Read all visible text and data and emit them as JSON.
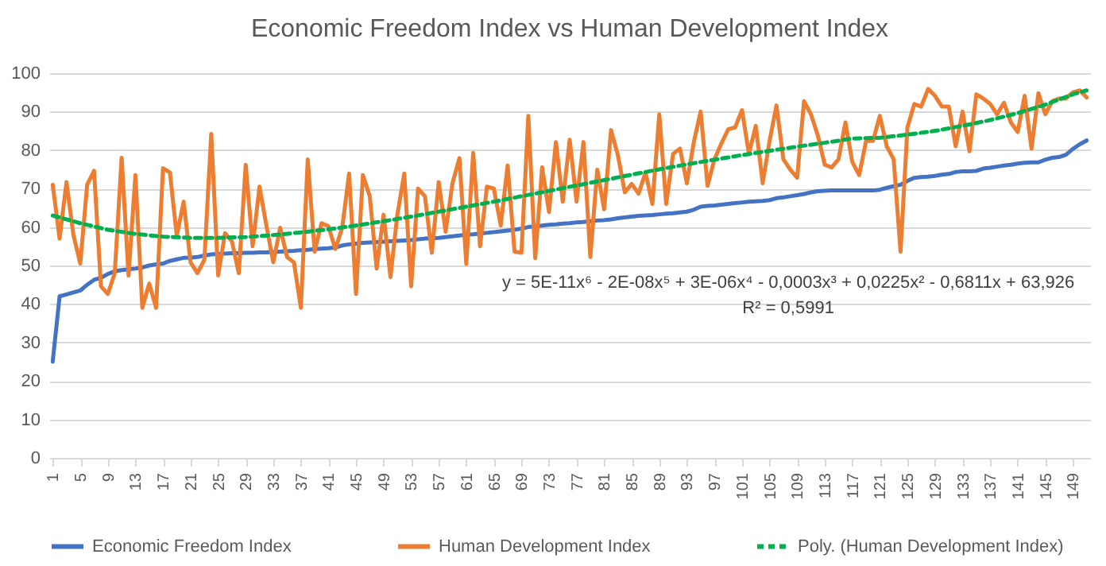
{
  "chart_data": {
    "type": "line",
    "title": "Economic Freedom Index vs Human Development Index",
    "x": [
      1,
      2,
      3,
      4,
      5,
      6,
      7,
      8,
      9,
      10,
      11,
      12,
      13,
      14,
      15,
      16,
      17,
      18,
      19,
      20,
      21,
      22,
      23,
      24,
      25,
      26,
      27,
      28,
      29,
      30,
      31,
      32,
      33,
      34,
      35,
      36,
      37,
      38,
      39,
      40,
      41,
      42,
      43,
      44,
      45,
      46,
      47,
      48,
      49,
      50,
      51,
      52,
      53,
      54,
      55,
      56,
      57,
      58,
      59,
      60,
      61,
      62,
      63,
      64,
      65,
      66,
      67,
      68,
      69,
      70,
      71,
      72,
      73,
      74,
      75,
      76,
      77,
      78,
      79,
      80,
      81,
      82,
      83,
      84,
      85,
      86,
      87,
      88,
      89,
      90,
      91,
      92,
      93,
      94,
      95,
      96,
      97,
      98,
      99,
      100,
      101,
      102,
      103,
      104,
      105,
      106,
      107,
      108,
      109,
      110,
      111,
      112,
      113,
      114,
      115,
      116,
      117,
      118,
      119,
      120,
      121,
      122,
      123,
      124,
      125,
      126,
      127,
      128,
      129,
      130,
      131,
      132,
      133,
      134,
      135,
      136,
      137,
      138,
      139,
      140,
      141,
      142,
      143,
      144,
      145,
      146,
      147,
      148,
      149,
      150,
      151
    ],
    "series": [
      {
        "name": "Economic Freedom Index",
        "color": "#4472c4",
        "line_style": "solid",
        "values": [
          25,
          42,
          42.5,
          43,
          43.5,
          45,
          46.3,
          46.8,
          47.8,
          48.5,
          48.8,
          49,
          49.2,
          49.5,
          50,
          50.3,
          50.5,
          51.2,
          51.6,
          52,
          52,
          52.2,
          52.6,
          52.9,
          53,
          53.1,
          53.2,
          53.2,
          53.3,
          53.3,
          53.4,
          53.4,
          53.5,
          53.6,
          53.7,
          53.8,
          54,
          54.1,
          54.3,
          54.4,
          54.5,
          54.7,
          55.2,
          55.5,
          55.7,
          55.9,
          56,
          56.1,
          56.2,
          56.3,
          56.4,
          56.5,
          56.6,
          56.8,
          57,
          57.1,
          57.2,
          57.4,
          57.6,
          57.8,
          58,
          58.1,
          58.3,
          58.5,
          58.7,
          58.9,
          59.1,
          59.3,
          59.6,
          60,
          60.2,
          60.4,
          60.6,
          60.7,
          60.9,
          61,
          61.2,
          61.3,
          61.5,
          61.7,
          61.8,
          62,
          62.3,
          62.5,
          62.7,
          62.9,
          63,
          63.1,
          63.3,
          63.5,
          63.6,
          63.8,
          64,
          64.5,
          65.3,
          65.5,
          65.6,
          65.8,
          66,
          66.2,
          66.4,
          66.6,
          66.7,
          66.8,
          67,
          67.5,
          67.7,
          68,
          68.3,
          68.6,
          69,
          69.3,
          69.4,
          69.5,
          69.5,
          69.5,
          69.5,
          69.5,
          69.5,
          69.5,
          69.7,
          70.2,
          70.6,
          71,
          72,
          72.8,
          73,
          73.1,
          73.3,
          73.6,
          73.8,
          74.3,
          74.5,
          74.5,
          74.6,
          75.2,
          75.4,
          75.7,
          76,
          76.2,
          76.5,
          76.7,
          76.8,
          76.8,
          77.5,
          78,
          78.2,
          78.8,
          80.3,
          81.5,
          82.5
        ]
      },
      {
        "name": "Human Development Index",
        "color": "#ed7d31",
        "line_style": "solid",
        "values": [
          71,
          57,
          71.7,
          58,
          50.5,
          71,
          74.6,
          44.6,
          42.6,
          48,
          78,
          47.4,
          73.5,
          39,
          45.3,
          39,
          75.3,
          74.2,
          57.7,
          66.6,
          50.8,
          48,
          51.5,
          84.2,
          47.4,
          58.4,
          56.3,
          48,
          76.2,
          55,
          70.5,
          60.4,
          50.8,
          59.8,
          52.2,
          50.8,
          39,
          77.6,
          53.6,
          61,
          60.2,
          54.3,
          59.8,
          73.9,
          42.6,
          73.5,
          68,
          49.2,
          63.2,
          47,
          63.2,
          73.9,
          44.6,
          70,
          68,
          53.3,
          71.7,
          58.8,
          71.4,
          77.9,
          50.4,
          79.3,
          55,
          70.5,
          70,
          60.4,
          76,
          53.6,
          53.3,
          88.9,
          51.9,
          75.5,
          63.9,
          82.1,
          66.6,
          82.7,
          66.6,
          82.1,
          52.2,
          74.9,
          64.6,
          85.2,
          78.6,
          69,
          71.2,
          68.7,
          74.2,
          66,
          89.3,
          66,
          79,
          80.4,
          71.4,
          82,
          90,
          70.7,
          77.6,
          81.7,
          85.4,
          85.9,
          90.4,
          79,
          86.3,
          71.4,
          82.4,
          91.6,
          77.6,
          74.9,
          72.8,
          92.7,
          89.3,
          83.8,
          76.2,
          75.5,
          77.6,
          87.2,
          76.9,
          73.5,
          82.4,
          82.4,
          88.9,
          81,
          77.6,
          53.6,
          85.9,
          92,
          91.3,
          95.9,
          94.1,
          91.3,
          91.3,
          81,
          90,
          79.7,
          94.5,
          93.4,
          92,
          89.3,
          92.3,
          87.2,
          84.7,
          94.1,
          80.4,
          94.8,
          89.3,
          92.7,
          93.4,
          93.4,
          95,
          95.5,
          93.7
        ]
      },
      {
        "name": "Poly. (Human Development Index)",
        "color": "#00b050",
        "line_style": "dashed",
        "x": [
          1,
          5,
          9,
          13,
          17,
          21,
          25,
          29,
          33,
          37,
          41,
          45,
          49,
          53,
          57,
          61,
          65,
          69,
          73,
          77,
          81,
          85,
          89,
          93,
          97,
          101,
          105,
          109,
          113,
          117,
          121,
          125,
          129,
          133,
          137,
          141,
          145,
          149,
          151
        ],
        "values": [
          63,
          61,
          59.3,
          58.2,
          57.5,
          57.2,
          57.2,
          57.4,
          57.9,
          58.6,
          59.4,
          60.4,
          61.5,
          62.7,
          64,
          65.3,
          66.6,
          68,
          69.4,
          70.8,
          72.2,
          73.6,
          75,
          76.3,
          77.5,
          78.7,
          79.8,
          80.9,
          81.9,
          83,
          83.2,
          84,
          85,
          86.3,
          87.8,
          89.6,
          91.8,
          94.5,
          95.5
        ]
      }
    ],
    "xlim": [
      0.5,
      151.5
    ],
    "xticks": [
      1,
      5,
      9,
      13,
      17,
      21,
      25,
      29,
      33,
      37,
      41,
      45,
      49,
      53,
      57,
      61,
      65,
      69,
      73,
      77,
      81,
      85,
      89,
      93,
      97,
      101,
      105,
      109,
      113,
      117,
      121,
      125,
      129,
      133,
      137,
      141,
      145,
      149
    ],
    "ylim": [
      0,
      100
    ],
    "yticks": [
      0,
      10,
      20,
      30,
      40,
      50,
      60,
      70,
      80,
      90,
      100
    ],
    "grid": "y",
    "legend": "bottom",
    "annotations": [
      "y = 5E-11x⁶ - 2E-08x⁵ + 3E-06x⁴ - 0,0003x³ + 0,0225x² - 0,6811x + 63,926",
      "R² = 0,5991"
    ]
  }
}
